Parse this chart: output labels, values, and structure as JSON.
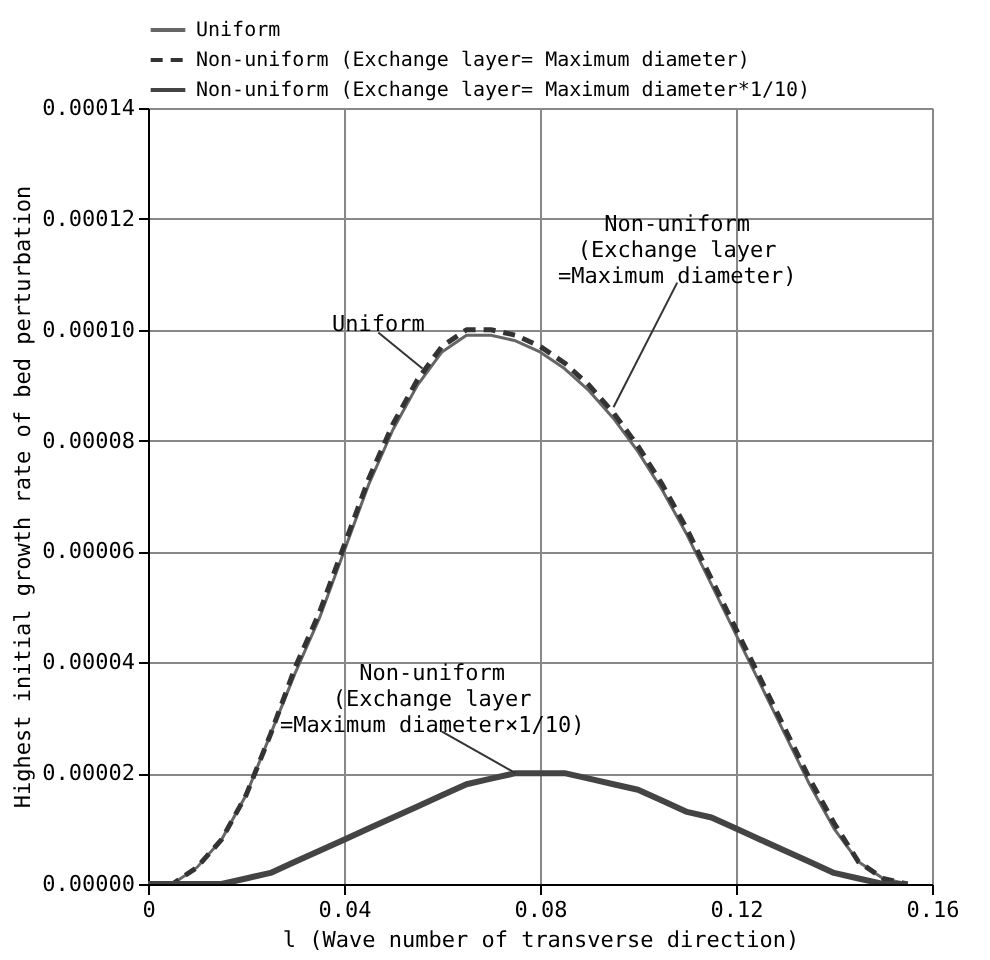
{
  "chart_data": {
    "type": "line",
    "xlabel": "l (Wave number of transverse direction)",
    "ylabel": "Highest initial growth rate of bed perturbation",
    "x": [
      0,
      0.005,
      0.01,
      0.015,
      0.02,
      0.025,
      0.03,
      0.035,
      0.04,
      0.045,
      0.05,
      0.055,
      0.06,
      0.065,
      0.07,
      0.075,
      0.08,
      0.085,
      0.09,
      0.095,
      0.1,
      0.105,
      0.11,
      0.115,
      0.12,
      0.125,
      0.13,
      0.135,
      0.14,
      0.145,
      0.15,
      0.155
    ],
    "series": [
      {
        "name": "Uniform",
        "color": "#666666",
        "line_style": "solid",
        "values": [
          0,
          0,
          3e-06,
          8e-06,
          1.6e-05,
          2.7e-05,
          3.8e-05,
          4.8e-05,
          6e-05,
          7.2e-05,
          8.2e-05,
          9e-05,
          9.6e-05,
          9.9e-05,
          9.9e-05,
          9.8e-05,
          9.6e-05,
          9.3e-05,
          8.9e-05,
          8.4e-05,
          7.8e-05,
          7.1e-05,
          6.3e-05,
          5.4e-05,
          4.5e-05,
          3.6e-05,
          2.7e-05,
          1.8e-05,
          1e-05,
          4e-06,
          1e-06,
          0
        ]
      },
      {
        "name": "Non-uniform (Exchange layer= Maximum diameter)",
        "color": "#333333",
        "line_style": "dashed",
        "values": [
          0,
          0,
          3e-06,
          8e-06,
          1.6e-05,
          2.7e-05,
          3.9e-05,
          4.9e-05,
          6.1e-05,
          7.3e-05,
          8.3e-05,
          9.1e-05,
          9.7e-05,
          0.0001,
          0.0001,
          9.9e-05,
          9.7e-05,
          9.4e-05,
          9e-05,
          8.5e-05,
          7.9e-05,
          7.2e-05,
          6.4e-05,
          5.5e-05,
          4.6e-05,
          3.7e-05,
          2.8e-05,
          1.9e-05,
          1.1e-05,
          4e-06,
          1e-06,
          0
        ]
      },
      {
        "name": "Non-uniform (Exchange layer= Maximum diameter*1/10)",
        "color": "#444444",
        "line_style": "solid",
        "values": [
          0,
          0,
          0,
          0,
          1e-06,
          2e-06,
          4e-06,
          6e-06,
          8e-06,
          1e-05,
          1.2e-05,
          1.4e-05,
          1.6e-05,
          1.8e-05,
          1.9e-05,
          2e-05,
          2e-05,
          2e-05,
          1.9e-05,
          1.8e-05,
          1.7e-05,
          1.5e-05,
          1.3e-05,
          1.2e-05,
          1e-05,
          8e-06,
          6e-06,
          4e-06,
          2e-06,
          1e-06,
          0,
          0
        ]
      }
    ],
    "xlim": [
      0,
      0.16
    ],
    "xticks": [
      0,
      0.04,
      0.08,
      0.12,
      0.16
    ],
    "ylim": [
      0,
      0.00014
    ],
    "yticks": [
      {
        "value": 0,
        "label": "0.00000"
      },
      {
        "value": 2e-05,
        "label": "0.00002"
      },
      {
        "value": 4e-05,
        "label": "0.00004"
      },
      {
        "value": 6e-05,
        "label": "0.00006"
      },
      {
        "value": 8e-05,
        "label": "0.00008"
      },
      {
        "value": 0.0001,
        "label": "0.00010"
      },
      {
        "value": 0.00012,
        "label": "0.00012"
      },
      {
        "value": 0.00014,
        "label": "0.00014"
      }
    ],
    "grid": true,
    "legend": "top",
    "annotations": [
      {
        "text": "Uniform",
        "x": 0.056,
        "y": 9.3e-05
      },
      {
        "text": "Non-uniform\n(Exchange layer\n=Maximum diameter)",
        "x": 0.095,
        "y": 8.6e-05
      },
      {
        "text": "Non-uniform\n(Exchange layer\n=Maximum diameter×1/10)",
        "x": 0.075,
        "y": 2e-05
      }
    ]
  }
}
